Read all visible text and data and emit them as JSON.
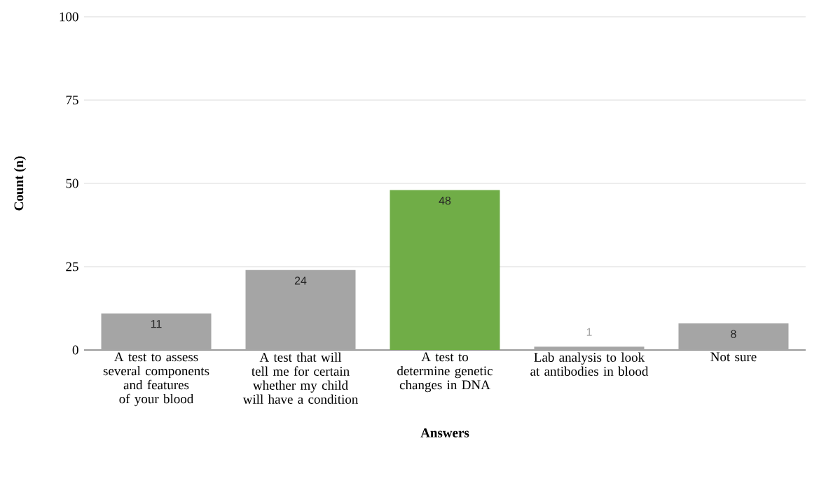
{
  "chart_data": {
    "type": "bar",
    "xlabel": "Answers",
    "ylabel": "Count (n)",
    "categories": [
      "A test to assess several components and features of your blood",
      "A test that will tell me for certain whether my child will have a condition",
      "A test to determine genetic changes in DNA",
      "Lab analysis to look at antibodies in blood",
      "Not sure"
    ],
    "values": [
      11,
      24,
      48,
      1,
      8
    ],
    "colors": [
      "#a5a5a5",
      "#a5a5a5",
      "#70ad47",
      "#a5a5a5",
      "#a5a5a5"
    ],
    "ylim": [
      0,
      100
    ],
    "yticks": [
      0,
      25,
      50,
      75,
      100
    ],
    "grid": "y",
    "data_labels": true
  }
}
